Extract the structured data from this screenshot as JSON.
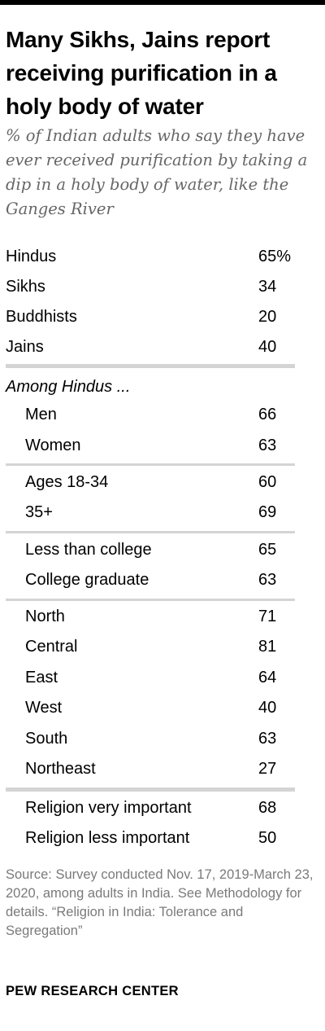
{
  "title": "Many Sikhs, Jains report receiving purification in a holy body of water",
  "subtitle": "% of Indian adults who say they have ever received purification by taking a dip in a holy body of water, like the Ganges River",
  "among_label": "Among Hindus ...",
  "source": "Source: Survey conducted Nov. 17, 2019-March 23, 2020, among adults in India. See Methodology for details. “Religion in India: Tolerance and Segregation”",
  "brand": "PEW RESEARCH CENTER",
  "chart_data": {
    "type": "table",
    "title": "Many Sikhs, Jains report receiving purification in a holy body of water",
    "subtitle": "% of Indian adults who say they have ever received purification by taking a dip in a holy body of water, like the Ganges River",
    "unit": "%",
    "groups": [
      {
        "rows": [
          {
            "label": "Hindus",
            "value": 65,
            "display": "65%"
          },
          {
            "label": "Sikhs",
            "value": 34,
            "display": "34"
          },
          {
            "label": "Buddhists",
            "value": 20,
            "display": "20"
          },
          {
            "label": "Jains",
            "value": 40,
            "display": "40"
          }
        ]
      },
      {
        "heading": "Among Hindus ...",
        "rows": [
          {
            "label": "Men",
            "value": 66,
            "display": "66"
          },
          {
            "label": "Women",
            "value": 63,
            "display": "63"
          }
        ]
      },
      {
        "rows": [
          {
            "label": "Ages 18-34",
            "value": 60,
            "display": "60"
          },
          {
            "label": "35+",
            "value": 69,
            "display": "69"
          }
        ]
      },
      {
        "rows": [
          {
            "label": "Less than college",
            "value": 65,
            "display": "65"
          },
          {
            "label": "College graduate",
            "value": 63,
            "display": "63"
          }
        ]
      },
      {
        "rows": [
          {
            "label": "North",
            "value": 71,
            "display": "71"
          },
          {
            "label": "Central",
            "value": 81,
            "display": "81"
          },
          {
            "label": "East",
            "value": 64,
            "display": "64"
          },
          {
            "label": "West",
            "value": 40,
            "display": "40"
          },
          {
            "label": "South",
            "value": 63,
            "display": "63"
          },
          {
            "label": "Northeast",
            "value": 27,
            "display": "27"
          }
        ]
      },
      {
        "rows": [
          {
            "label": "Religion very important",
            "value": 68,
            "display": "68"
          },
          {
            "label": "Religion less important",
            "value": 50,
            "display": "50"
          }
        ]
      }
    ]
  }
}
